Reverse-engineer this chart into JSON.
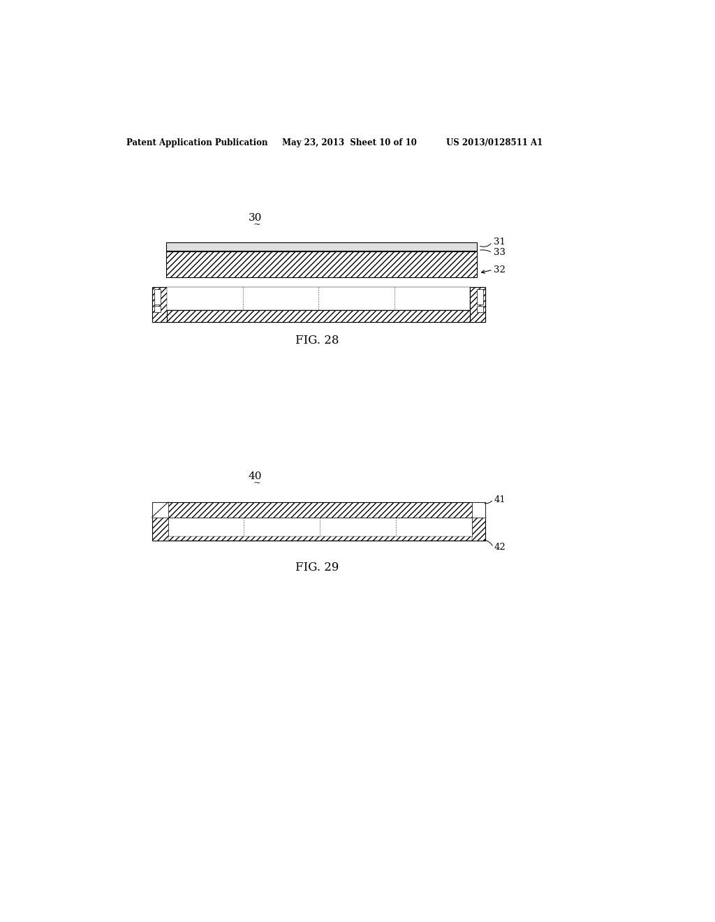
{
  "header_left": "Patent Application Publication",
  "header_mid": "May 23, 2013  Sheet 10 of 10",
  "header_right": "US 2013/0128511 A1",
  "fig28_label": "FIG. 28",
  "fig29_label": "FIG. 29",
  "label_30": "30",
  "label_31": "31",
  "label_32": "32",
  "label_33": "33",
  "label_40": "40",
  "label_41": "41",
  "label_42": "42",
  "bg_color": "#ffffff",
  "line_color": "#000000"
}
